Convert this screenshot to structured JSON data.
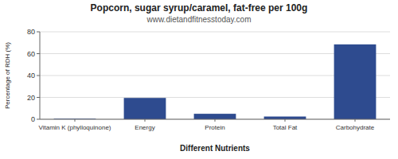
{
  "chart_data": {
    "type": "bar",
    "title": "Popcorn, sugar syrup/caramel, fat-free per 100g",
    "subtitle": "www.dietandfitnesstoday.com",
    "xlabel": "Different Nutrients",
    "ylabel": "Percentage of RDH (%)",
    "categories": [
      "Vitamin K (phylloquinone)",
      "Energy",
      "Protein",
      "Total Fat",
      "Carbohydrate"
    ],
    "values": [
      0.5,
      19.5,
      5.0,
      2.5,
      68.5
    ],
    "color": "#2e4b8f",
    "ylim": [
      0,
      80
    ],
    "yticks": [
      0,
      20,
      40,
      60,
      80
    ],
    "grid": true
  }
}
